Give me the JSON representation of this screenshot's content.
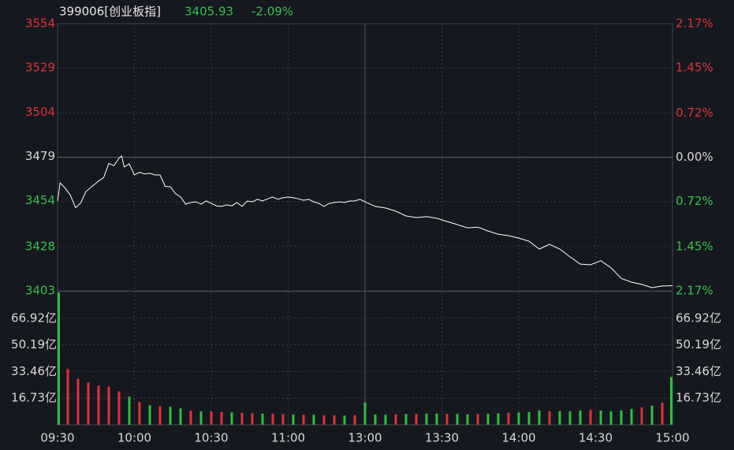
{
  "chart_data": [
    {
      "type": "line",
      "title": "399006[创业板指]",
      "last_price": "3405.93",
      "change": "-2.09%",
      "x": [
        0,
        1,
        3,
        5,
        7,
        9,
        11,
        14,
        16,
        18,
        20,
        22,
        24,
        25,
        26,
        28,
        30,
        32,
        34,
        36,
        38,
        40,
        42,
        44,
        46,
        48,
        50,
        52,
        54,
        56,
        58,
        60,
        62,
        64,
        66,
        68,
        70,
        72,
        74,
        76,
        78,
        80,
        82,
        84,
        86,
        88,
        90,
        92,
        94,
        96,
        98,
        100,
        102,
        104,
        106,
        108,
        110,
        112,
        114,
        116,
        118,
        120,
        124,
        128,
        132,
        136,
        140,
        144,
        148,
        152,
        156,
        160,
        164,
        168,
        172,
        176,
        180,
        184,
        188,
        192,
        196,
        200,
        204,
        208,
        212,
        216,
        220,
        224,
        228,
        232,
        236,
        240
      ],
      "values": [
        3453.8,
        3464,
        3461,
        3457,
        3450,
        3452.6,
        3459,
        3462.7,
        3465,
        3467,
        3475,
        3473.8,
        3478,
        3479.2,
        3473,
        3474.7,
        3468.5,
        3470,
        3469,
        3469.4,
        3468.5,
        3468.5,
        3462,
        3461.8,
        3458,
        3456,
        3452,
        3452.9,
        3453.3,
        3452,
        3453.8,
        3452.4,
        3451,
        3450.7,
        3451.6,
        3451,
        3452.9,
        3450.7,
        3453.8,
        3453.3,
        3454.7,
        3453.8,
        3455,
        3456,
        3454.7,
        3455.6,
        3456,
        3455.6,
        3455,
        3454.2,
        3454.7,
        3453.3,
        3452.4,
        3450.7,
        3452.4,
        3452.9,
        3453.3,
        3452.9,
        3453.8,
        3453.8,
        3454.7,
        3453.3,
        3450.7,
        3449.8,
        3448,
        3445.3,
        3444.4,
        3444.9,
        3444,
        3442.2,
        3440.4,
        3438.6,
        3439,
        3436.8,
        3435,
        3434.2,
        3432.8,
        3431,
        3426.6,
        3429.3,
        3426.6,
        3422.2,
        3418.1,
        3417.7,
        3420,
        3416,
        3410,
        3407.9,
        3406.6,
        3404.8,
        3405.7,
        3405.9
      ],
      "color": "#ffffff",
      "xlim": [
        0,
        240
      ],
      "xticks": [
        {
          "value": 0,
          "label": "09:30"
        },
        {
          "value": 30,
          "label": "10:00"
        },
        {
          "value": 60,
          "label": "10:30"
        },
        {
          "value": 90,
          "label": "11:00"
        },
        {
          "value": 120,
          "label": "13:00"
        },
        {
          "value": 150,
          "label": "13:30"
        },
        {
          "value": 180,
          "label": "14:00"
        },
        {
          "value": 210,
          "label": "14:30"
        },
        {
          "value": 240,
          "label": "15:00"
        }
      ],
      "ylim": [
        3403,
        3554
      ],
      "yticks": [
        3554,
        3529,
        3504,
        3479,
        3454,
        3428,
        3403
      ],
      "y2lim": [
        -2.17,
        2.17
      ],
      "y2ticks": [
        {
          "value": 2.17,
          "label": "2.17%"
        },
        {
          "value": 1.45,
          "label": "1.45%"
        },
        {
          "value": 0.72,
          "label": "0.72%"
        },
        {
          "value": 0,
          "label": "0.00%"
        },
        {
          "value": -0.72,
          "label": "0.72%"
        },
        {
          "value": -1.45,
          "label": "1.45%"
        },
        {
          "value": -2.17,
          "label": "2.17%"
        }
      ],
      "grid": true
    },
    {
      "type": "bar",
      "x": [
        0,
        4,
        8,
        12,
        16,
        20,
        24,
        28,
        32,
        36,
        40,
        44,
        48,
        52,
        56,
        60,
        64,
        68,
        72,
        76,
        80,
        84,
        88,
        92,
        96,
        100,
        104,
        108,
        112,
        116,
        120,
        124,
        128,
        132,
        136,
        140,
        144,
        148,
        152,
        156,
        160,
        164,
        168,
        172,
        176,
        180,
        184,
        188,
        192,
        196,
        200,
        204,
        208,
        212,
        216,
        220,
        224,
        228,
        232,
        236,
        240
      ],
      "values": [
        83,
        35,
        29,
        26.6,
        24.6,
        24,
        21,
        17.7,
        14.3,
        12.3,
        11.8,
        11.3,
        10.3,
        9,
        8.5,
        8.4,
        8,
        7.8,
        7.5,
        7.2,
        7,
        7,
        6.8,
        6.5,
        6.3,
        6.3,
        6,
        6,
        5.8,
        6,
        14,
        6.5,
        6.3,
        6.5,
        6.8,
        6.8,
        7,
        7,
        6.8,
        6.8,
        6.5,
        6.8,
        7,
        7.2,
        7.5,
        7.8,
        8,
        9,
        8.5,
        8.6,
        8.5,
        9,
        9.5,
        9,
        8.5,
        9,
        10,
        11,
        12,
        14,
        30
      ],
      "colors": [
        "#2fbf3a",
        "#e0323a",
        "#e0323a",
        "#e0323a",
        "#e0323a",
        "#e0323a",
        "#e0323a",
        "#2fbf3a",
        "#e0323a",
        "#2fbf3a",
        "#e0323a",
        "#2fbf3a",
        "#2fbf3a",
        "#e0323a",
        "#2fbf3a",
        "#e0323a",
        "#e0323a",
        "#2fbf3a",
        "#e0323a",
        "#e0323a",
        "#2fbf3a",
        "#e0323a",
        "#e0323a",
        "#2fbf3a",
        "#e0323a",
        "#2fbf3a",
        "#e0323a",
        "#e0323a",
        "#2fbf3a",
        "#e0323a",
        "#2fbf3a",
        "#2fbf3a",
        "#2fbf3a",
        "#e0323a",
        "#2fbf3a",
        "#e0323a",
        "#2fbf3a",
        "#2fbf3a",
        "#e0323a",
        "#2fbf3a",
        "#2fbf3a",
        "#e0323a",
        "#2fbf3a",
        "#2fbf3a",
        "#e0323a",
        "#2fbf3a",
        "#2fbf3a",
        "#2fbf3a",
        "#e0323a",
        "#2fbf3a",
        "#2fbf3a",
        "#2fbf3a",
        "#e0323a",
        "#2fbf3a",
        "#2fbf3a",
        "#2fbf3a",
        "#2fbf3a",
        "#e0323a",
        "#2fbf3a",
        "#e0323a",
        "#2fbf3a"
      ],
      "ylim": [
        0,
        83.65
      ],
      "yticks": [
        {
          "value": 66.92,
          "label": "66.92亿"
        },
        {
          "value": 50.19,
          "label": "50.19亿"
        },
        {
          "value": 33.46,
          "label": "33.46亿"
        },
        {
          "value": 16.73,
          "label": "16.73亿"
        }
      ]
    }
  ]
}
